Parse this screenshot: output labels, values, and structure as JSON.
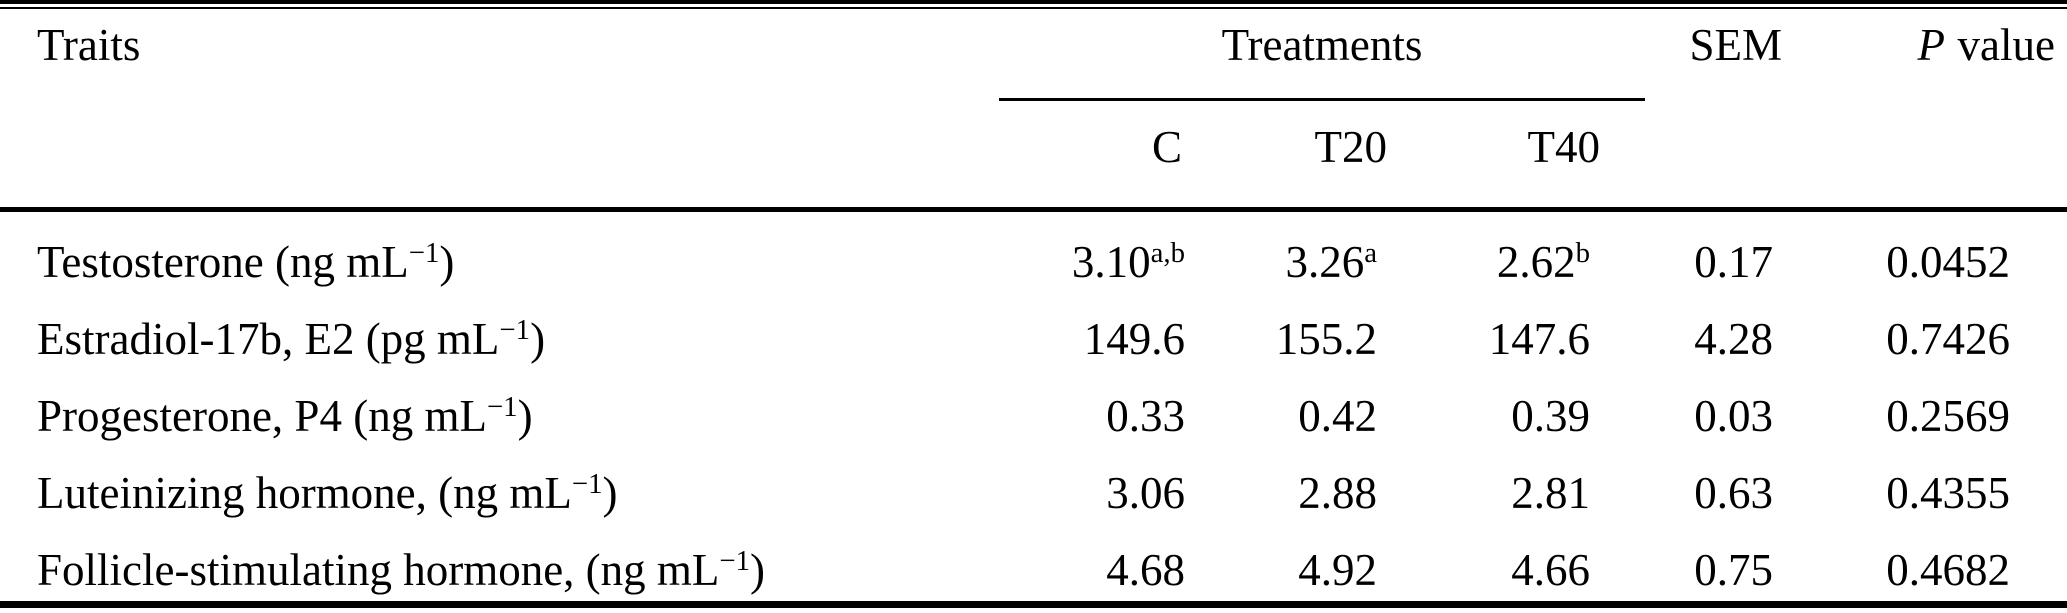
{
  "table": {
    "header": {
      "traits": "Traits",
      "treatments": "Treatments",
      "sem": "SEM",
      "p_italic": "P",
      "p_rest": "value",
      "sub_c": "C",
      "sub_t20": "T20",
      "sub_t40": "T40"
    },
    "rows": [
      {
        "trait_pre": "Testosterone (ng mL",
        "trait_sup": "−1",
        "trait_post": ")",
        "c": "3.10",
        "c_sup": "a,b",
        "t20": "3.26",
        "t20_sup": "a",
        "t40": "2.62",
        "t40_sup": "b",
        "sem": "0.17",
        "p": "0.0452"
      },
      {
        "trait_pre": "Estradiol-17b, E2 (pg mL",
        "trait_sup": "−1",
        "trait_post": ")",
        "c": "149.6",
        "c_sup": "",
        "t20": "155.2",
        "t20_sup": "",
        "t40": "147.6",
        "t40_sup": "",
        "sem": "4.28",
        "p": "0.7426"
      },
      {
        "trait_pre": "Progesterone, P4 (ng mL",
        "trait_sup": "−1",
        "trait_post": ")",
        "c": "0.33",
        "c_sup": "",
        "t20": "0.42",
        "t20_sup": "",
        "t40": "0.39",
        "t40_sup": "",
        "sem": "0.03",
        "p": "0.2569"
      },
      {
        "trait_pre": "Luteinizing hormone, (ng mL",
        "trait_sup": "−1",
        "trait_post": ")",
        "c": "3.06",
        "c_sup": "",
        "t20": "2.88",
        "t20_sup": "",
        "t40": "2.81",
        "t40_sup": "",
        "sem": "0.63",
        "p": "0.4355"
      },
      {
        "trait_pre": "Follicle-stimulating hormone, (ng mL",
        "trait_sup": "−1",
        "trait_post": ")",
        "c": "4.68",
        "c_sup": "",
        "t20": "4.92",
        "t20_sup": "",
        "t40": "4.66",
        "t40_sup": "",
        "sem": "0.75",
        "p": "0.4682"
      }
    ]
  },
  "chart_data": {
    "type": "table",
    "columns": [
      "Traits",
      "C",
      "T20",
      "T40",
      "SEM",
      "P value"
    ],
    "column_groups": [
      {
        "label": "Treatments",
        "spans": [
          "C",
          "T20",
          "T40"
        ]
      }
    ],
    "rows": [
      {
        "trait": "Testosterone (ng mL−1)",
        "C": 3.1,
        "C_sig": "a,b",
        "T20": 3.26,
        "T20_sig": "a",
        "T40": 2.62,
        "T40_sig": "b",
        "SEM": 0.17,
        "P_value": 0.0452
      },
      {
        "trait": "Estradiol-17b, E2 (pg mL−1)",
        "C": 149.6,
        "T20": 155.2,
        "T40": 147.6,
        "SEM": 4.28,
        "P_value": 0.7426
      },
      {
        "trait": "Progesterone, P4 (ng mL−1)",
        "C": 0.33,
        "T20": 0.42,
        "T40": 0.39,
        "SEM": 0.03,
        "P_value": 0.2569
      },
      {
        "trait": "Luteinizing hormone, (ng mL−1)",
        "C": 3.06,
        "T20": 2.88,
        "T40": 2.81,
        "SEM": 0.63,
        "P_value": 0.4355
      },
      {
        "trait": "Follicle-stimulating hormone, (ng mL−1)",
        "C": 4.68,
        "T20": 4.92,
        "T40": 4.66,
        "SEM": 0.75,
        "P_value": 0.4682
      }
    ]
  },
  "colors": {
    "background": "#ffffff",
    "text": "#000000",
    "rule": "#000000"
  }
}
